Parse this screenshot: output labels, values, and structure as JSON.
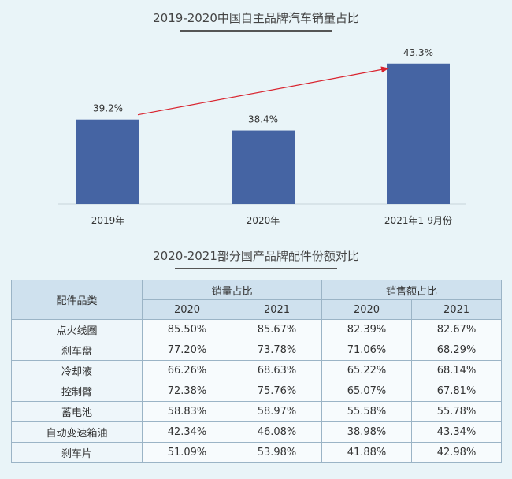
{
  "chart_data": {
    "type": "bar",
    "title": "2019-2020中国自主品牌汽车销量占比",
    "categories": [
      "2019年",
      "2020年",
      "2021年1-9月份"
    ],
    "values": [
      39.2,
      38.4,
      43.3
    ],
    "labels": [
      "39.2%",
      "38.4%",
      "43.3%"
    ],
    "xlabel": "",
    "ylabel": "",
    "ylim": [
      33.0,
      44.5
    ],
    "bar_color": "#4564a3",
    "arrow": {
      "from_category": "2019年",
      "to_category": "2021年1-9月份",
      "color": "#d9232e"
    }
  },
  "table": {
    "title": "2020-2021部分国产品牌配件份额对比",
    "col_category": "配件品类",
    "group_sales": "销量占比",
    "group_revenue": "销售额占比",
    "years": [
      "2020",
      "2021",
      "2020",
      "2021"
    ],
    "rows": [
      {
        "name": "点火线圈",
        "cells": [
          "85.50%",
          "85.67%",
          "82.39%",
          "82.67%"
        ]
      },
      {
        "name": "刹车盘",
        "cells": [
          "77.20%",
          "73.78%",
          "71.06%",
          "68.29%"
        ]
      },
      {
        "name": "冷却液",
        "cells": [
          "66.26%",
          "68.63%",
          "65.22%",
          "68.14%"
        ]
      },
      {
        "name": "控制臂",
        "cells": [
          "72.38%",
          "75.76%",
          "65.07%",
          "67.81%"
        ]
      },
      {
        "name": "蓄电池",
        "cells": [
          "58.83%",
          "58.97%",
          "55.58%",
          "55.78%"
        ]
      },
      {
        "name": "自动变速箱油",
        "cells": [
          "42.34%",
          "46.08%",
          "38.98%",
          "43.34%"
        ]
      },
      {
        "name": "刹车片",
        "cells": [
          "51.09%",
          "53.98%",
          "41.88%",
          "42.98%"
        ]
      }
    ]
  }
}
